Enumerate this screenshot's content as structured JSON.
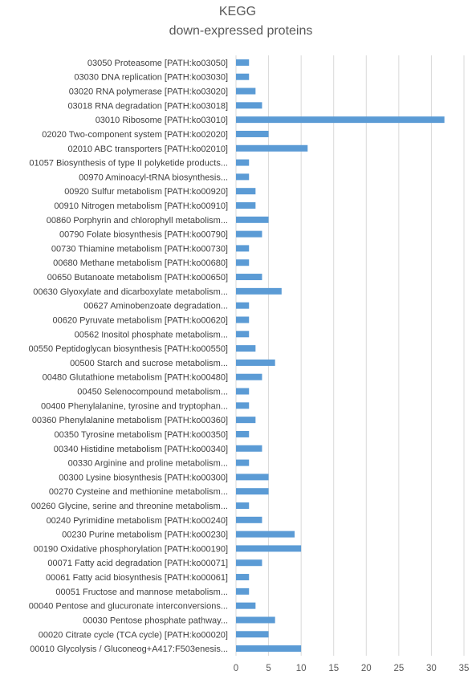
{
  "chart_data": {
    "type": "bar",
    "orientation": "horizontal",
    "title_line1": "KEGG",
    "title_line2": "down-expressed proteins",
    "xlim": [
      0,
      35
    ],
    "x_ticks": [
      0,
      5,
      10,
      15,
      20,
      25,
      30,
      35
    ],
    "grid": "vertical",
    "bar_color": "#5b9bd5",
    "categories": [
      "03050 Proteasome [PATH:ko03050]",
      "03030 DNA replication [PATH:ko03030]",
      "03020 RNA polymerase [PATH:ko03020]",
      "03018 RNA degradation [PATH:ko03018]",
      "03010 Ribosome [PATH:ko03010]",
      "02020 Two-component system [PATH:ko02020]",
      "02010 ABC transporters [PATH:ko02010]",
      "01057 Biosynthesis of type II polyketide products...",
      "00970 Aminoacyl-tRNA biosynthesis...",
      "00920 Sulfur metabolism [PATH:ko00920]",
      "00910 Nitrogen metabolism [PATH:ko00910]",
      "00860 Porphyrin and chlorophyll metabolism...",
      "00790 Folate biosynthesis [PATH:ko00790]",
      "00730 Thiamine metabolism [PATH:ko00730]",
      "00680 Methane metabolism [PATH:ko00680]",
      "00650 Butanoate metabolism [PATH:ko00650]",
      "00630 Glyoxylate and dicarboxylate metabolism...",
      "00627 Aminobenzoate degradation...",
      "00620 Pyruvate metabolism [PATH:ko00620]",
      "00562 Inositol phosphate metabolism...",
      "00550 Peptidoglycan biosynthesis [PATH:ko00550]",
      "00500 Starch and sucrose metabolism...",
      "00480 Glutathione metabolism [PATH:ko00480]",
      "00450 Selenocompound metabolism...",
      "00400 Phenylalanine, tyrosine and tryptophan...",
      "00360 Phenylalanine metabolism [PATH:ko00360]",
      "00350 Tyrosine metabolism [PATH:ko00350]",
      "00340 Histidine metabolism [PATH:ko00340]",
      "00330 Arginine and proline metabolism...",
      "00300 Lysine biosynthesis [PATH:ko00300]",
      "00270 Cysteine and methionine metabolism...",
      "00260 Glycine, serine and threonine metabolism...",
      "00240 Pyrimidine metabolism [PATH:ko00240]",
      "00230 Purine metabolism [PATH:ko00230]",
      "00190 Oxidative phosphorylation [PATH:ko00190]",
      "00071 Fatty acid degradation [PATH:ko00071]",
      "00061 Fatty acid biosynthesis [PATH:ko00061]",
      "00051 Fructose and mannose metabolism...",
      "00040 Pentose and glucuronate interconversions...",
      "00030 Pentose phosphate pathway...",
      "00020 Citrate cycle (TCA cycle) [PATH:ko00020]",
      "00010 Glycolysis / Gluconeog+A417:F503enesis..."
    ],
    "values": [
      2,
      2,
      3,
      4,
      32,
      5,
      11,
      2,
      2,
      3,
      3,
      5,
      4,
      2,
      2,
      4,
      7,
      2,
      2,
      2,
      3,
      6,
      4,
      2,
      2,
      3,
      2,
      4,
      2,
      5,
      5,
      2,
      4,
      9,
      10,
      4,
      2,
      2,
      3,
      6,
      5,
      10
    ]
  }
}
